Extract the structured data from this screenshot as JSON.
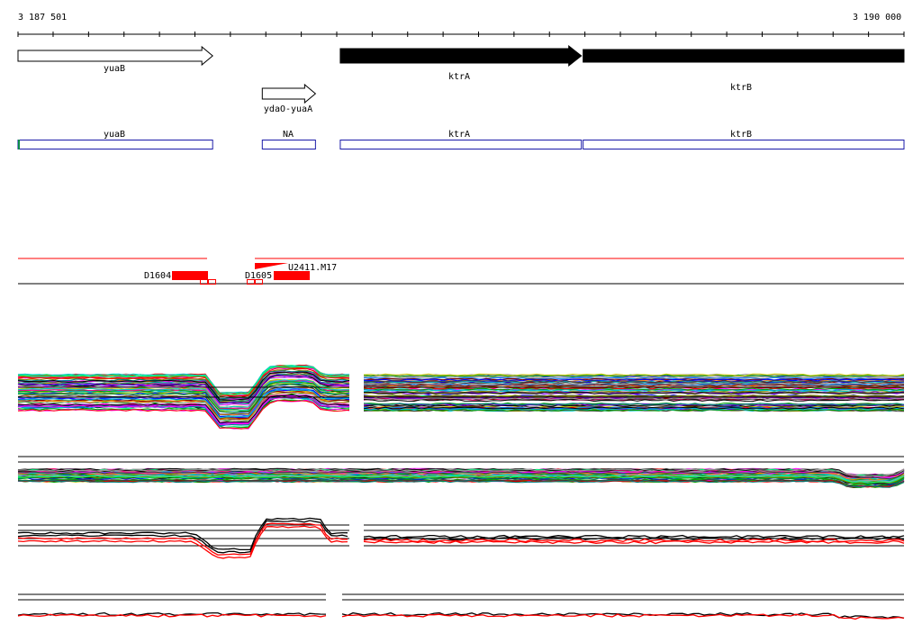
{
  "ruler": {
    "start_label": "3 187 501",
    "end_label": "3 190 000",
    "start_bp": 3187501,
    "end_bp": 3190000,
    "tick_interval_bp": 100
  },
  "genes": [
    {
      "name": "yuaB",
      "start_bp": 3187501,
      "end_bp": 3188050,
      "strand": "+",
      "filled": false
    },
    {
      "name": "ydaO-yuaA",
      "start_bp": 3188190,
      "end_bp": 3188340,
      "strand": "+",
      "filled": false
    },
    {
      "name": "ktrA",
      "start_bp": 3188410,
      "end_bp": 3189090,
      "strand": "+",
      "filled": true
    },
    {
      "name": "ktrB",
      "start_bp": 3189095,
      "end_bp": 3190000,
      "strand": "+",
      "filled": true
    }
  ],
  "annotations": [
    {
      "name": "yuaB",
      "start_bp": 3187501,
      "end_bp": 3188050
    },
    {
      "name": "NA",
      "start_bp": 3188190,
      "end_bp": 3188340
    },
    {
      "name": "ktrA",
      "start_bp": 3188410,
      "end_bp": 3189090
    },
    {
      "name": "ktrB",
      "start_bp": 3189095,
      "end_bp": 3190000
    }
  ],
  "features": [
    {
      "name": "D1604",
      "start_bp": 3187935,
      "end_bp": 3188035
    },
    {
      "name": "D1605",
      "start_bp": 3188210,
      "end_bp": 3188310
    },
    {
      "name": "U2411.M17",
      "start_bp": 3188155,
      "end_bp": 3188255
    }
  ],
  "colors": {
    "gene_fill": "#000000",
    "annotation_box": "#1a1aa8",
    "feature": "#ff0000",
    "track_line": "#000000"
  }
}
